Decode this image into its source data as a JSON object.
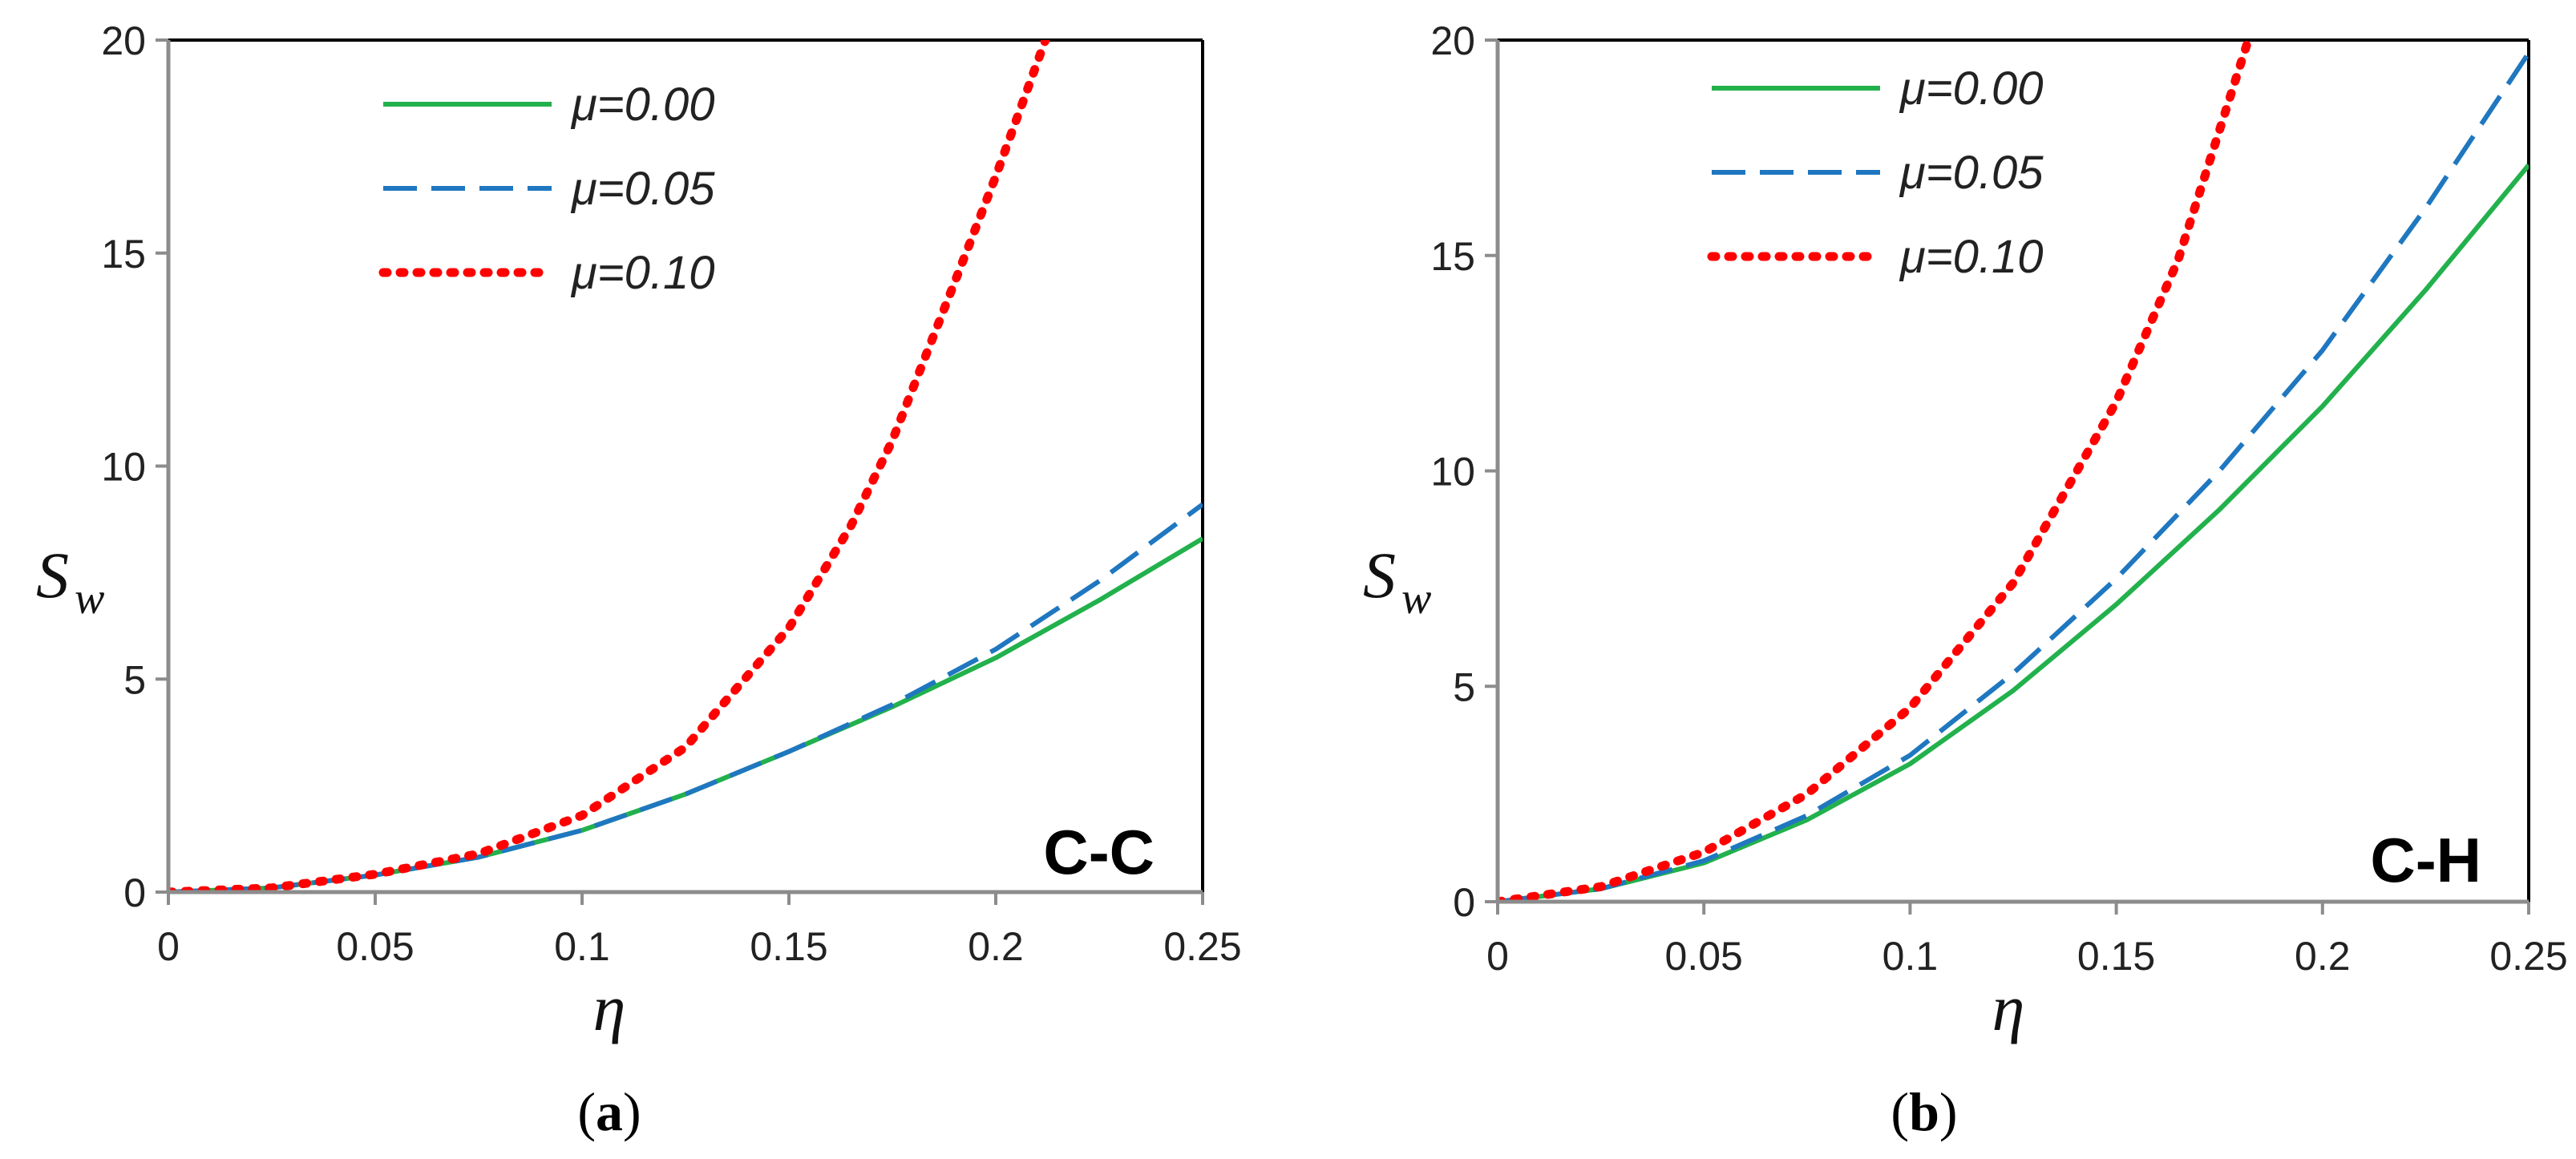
{
  "colors": {
    "mu_000": "#22b14c",
    "mu_005": "#1f77c0",
    "mu_010": "#ff0000",
    "axis": "#8c8c8c",
    "frame": "#000000"
  },
  "chart_data": [
    {
      "type": "line",
      "panel": "C-C",
      "caption": "a",
      "xlabel": "η",
      "ylabel": "S",
      "ylabel_sub": "w",
      "xlim": [
        0,
        0.25
      ],
      "ylim": [
        0,
        20
      ],
      "xticks": [
        "0",
        "0.05",
        "0.1",
        "0.15",
        "0.2",
        "0.25"
      ],
      "yticks": [
        "0",
        "5",
        "10",
        "15",
        "20"
      ],
      "legend_position": "top-left",
      "grid": false,
      "series": [
        {
          "name": "μ=0.00",
          "style": "solid",
          "x": [
            0,
            0.025,
            0.05,
            0.075,
            0.1,
            0.125,
            0.15,
            0.175,
            0.2,
            0.225,
            0.25
          ],
          "y": [
            0,
            0.1,
            0.4,
            0.82,
            1.45,
            2.3,
            3.3,
            4.35,
            5.5,
            6.85,
            8.3
          ]
        },
        {
          "name": "μ=0.05",
          "style": "dashed",
          "x": [
            0,
            0.025,
            0.05,
            0.075,
            0.1,
            0.125,
            0.15,
            0.175,
            0.2,
            0.225,
            0.25
          ],
          "y": [
            0,
            0.1,
            0.4,
            0.82,
            1.45,
            2.3,
            3.3,
            4.4,
            5.7,
            7.3,
            9.1
          ]
        },
        {
          "name": "μ=0.10",
          "style": "dotted",
          "x": [
            0,
            0.025,
            0.05,
            0.075,
            0.1,
            0.125,
            0.15,
            0.165,
            0.175,
            0.19,
            0.2,
            0.212
          ],
          "y": [
            0,
            0.1,
            0.42,
            0.9,
            1.8,
            3.4,
            6.2,
            8.6,
            10.6,
            14.3,
            16.8,
            20
          ]
        }
      ]
    },
    {
      "type": "line",
      "panel": "C-H",
      "caption": "b",
      "xlabel": "η",
      "ylabel": "S",
      "ylabel_sub": "w",
      "xlim": [
        0,
        0.25
      ],
      "ylim": [
        0,
        20
      ],
      "xticks": [
        "0",
        "0.05",
        "0.1",
        "0.15",
        "0.2",
        "0.25"
      ],
      "yticks": [
        "0",
        "5",
        "10",
        "15",
        "20"
      ],
      "legend_position": "top-left",
      "grid": false,
      "series": [
        {
          "name": "μ=0.00",
          "style": "solid",
          "x": [
            0,
            0.025,
            0.05,
            0.075,
            0.1,
            0.125,
            0.15,
            0.175,
            0.2,
            0.225,
            0.25
          ],
          "y": [
            0,
            0.3,
            0.9,
            1.9,
            3.2,
            4.9,
            6.9,
            9.1,
            11.5,
            14.2,
            17.1
          ]
        },
        {
          "name": "μ=0.05",
          "style": "dashed",
          "x": [
            0,
            0.025,
            0.05,
            0.075,
            0.1,
            0.125,
            0.15,
            0.175,
            0.2,
            0.225,
            0.25
          ],
          "y": [
            0,
            0.3,
            0.95,
            2.0,
            3.4,
            5.3,
            7.5,
            10.0,
            12.8,
            16.1,
            19.7
          ]
        },
        {
          "name": "μ=0.10",
          "style": "dotted",
          "x": [
            0,
            0.025,
            0.05,
            0.075,
            0.1,
            0.125,
            0.15,
            0.165,
            0.182
          ],
          "y": [
            0,
            0.35,
            1.15,
            2.5,
            4.5,
            7.4,
            11.6,
            14.9,
            20
          ]
        }
      ]
    }
  ]
}
